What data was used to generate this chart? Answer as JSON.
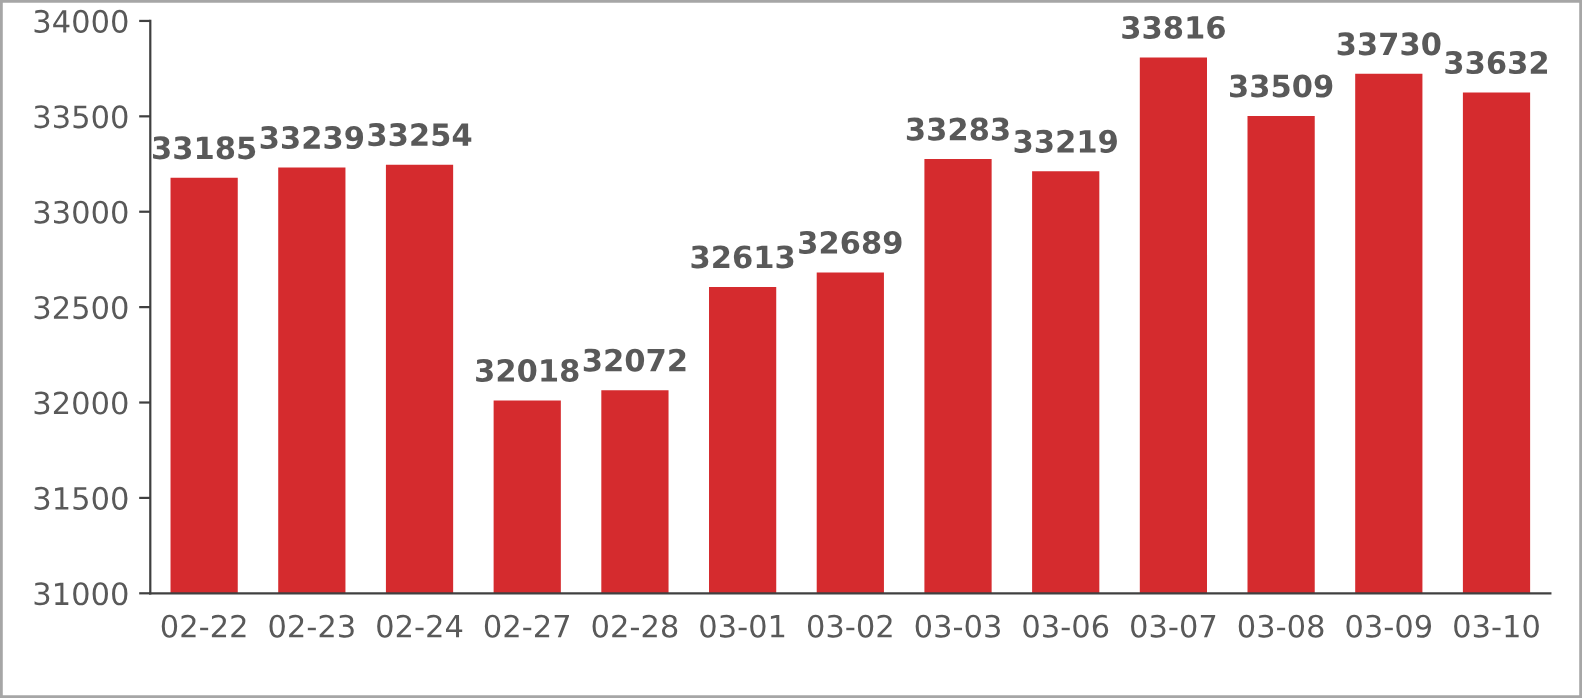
{
  "chart_data": {
    "type": "bar",
    "categories": [
      "02-22",
      "02-23",
      "02-24",
      "02-27",
      "02-28",
      "03-01",
      "03-02",
      "03-03",
      "03-06",
      "03-07",
      "03-08",
      "03-09",
      "03-10"
    ],
    "values": [
      33185,
      33239,
      33254,
      32018,
      32072,
      32613,
      32689,
      33283,
      33219,
      33816,
      33509,
      33730,
      33632
    ],
    "color": "#d52b2e",
    "ylim": [
      31000,
      34000
    ],
    "yticks": [
      31000,
      31500,
      32000,
      32500,
      33000,
      33500,
      34000
    ],
    "data_labels": true,
    "grid": false,
    "legend": false
  }
}
